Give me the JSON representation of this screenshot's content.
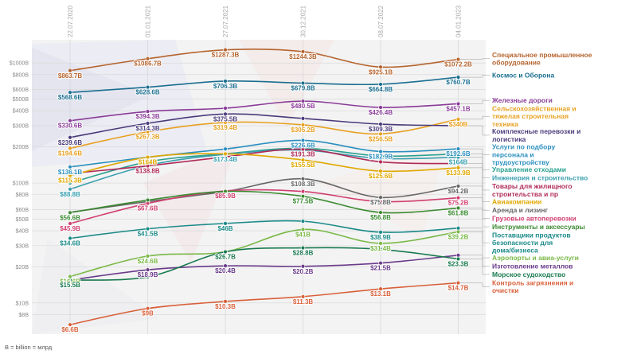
{
  "chart_data": {
    "type": "line",
    "title": "",
    "xlabel": "",
    "ylabel": "",
    "y_scale": "log",
    "ylim": [
      5.5,
      1300
    ],
    "grid": true,
    "x_dates": [
      "22.07.2020",
      "01.01.2021",
      "27.07.2021",
      "30.12.2021",
      "08.07.2022",
      "04.01.2023"
    ],
    "y_ticks": [
      {
        "v": 1000,
        "t": "$1000B"
      },
      {
        "v": 800,
        "t": "$800B"
      },
      {
        "v": 600,
        "t": "$600B"
      },
      {
        "v": 500,
        "t": "$500B"
      },
      {
        "v": 400,
        "t": "$400B"
      },
      {
        "v": 300,
        "t": "$300B"
      },
      {
        "v": 200,
        "t": "$200B"
      },
      {
        "v": 100,
        "t": "$100B"
      },
      {
        "v": 80,
        "t": "$80B"
      },
      {
        "v": 60,
        "t": "$60B"
      },
      {
        "v": 50,
        "t": "$50B"
      },
      {
        "v": 40,
        "t": "$40B"
      },
      {
        "v": 30,
        "t": "$30B"
      },
      {
        "v": 20,
        "t": "$20B"
      },
      {
        "v": 10,
        "t": "$10B"
      },
      {
        "v": 8,
        "t": "$8B"
      }
    ],
    "footnote": "B = billion = млрд",
    "series": [
      {
        "name": "Специальное промышленное оборудование",
        "color": "#b5642e",
        "values": [
          863.7,
          1086.7,
          1287.3,
          1244.3,
          925.1,
          1072.2
        ],
        "labels": [
          "$863.7B",
          "$1086.7B",
          "$1287.3B",
          "$1244.3B",
          "$925.1B",
          "$1072.2B"
        ]
      },
      {
        "name": "Космос и Оборона",
        "color": "#1a6e8f",
        "values": [
          568.6,
          628.6,
          706.3,
          679.8,
          664.8,
          760.7
        ],
        "labels": [
          "$568.6B",
          "$628.6B",
          "$706.3B",
          "$679.8B",
          "$664.8B",
          "$760.7B"
        ]
      },
      {
        "name": "Железные дороги",
        "color": "#8a3c98",
        "values": [
          330.6,
          394.3,
          420,
          480.5,
          426.4,
          457.1
        ],
        "labels": [
          "$330.6B",
          "$394.3B",
          "",
          "$480.5B",
          "$426.4B",
          "$457.1B"
        ]
      },
      {
        "name": "Сельскохозяйственная и тяжелая строительная техника",
        "color": "#e8a020",
        "values": [
          194.6,
          267.3,
          319.4,
          305.2,
          256.5,
          340
        ],
        "labels": [
          "$194.6B",
          "$267.3B",
          "$319.4B",
          "$305.2B",
          "$256.5B",
          "$340B"
        ]
      },
      {
        "name": "Комплексные перевозки и логистика",
        "color": "#4a3a7a",
        "values": [
          239.6,
          314.3,
          375.5,
          345,
          309.3,
          300
        ],
        "labels": [
          "$239.6B",
          "$314.3B",
          "$375.5B",
          "",
          "$309.3B",
          ""
        ]
      },
      {
        "name": "Услуги по подбору персонала и трудоустройству",
        "color": "#2a8fbf",
        "values": [
          136.1,
          164,
          192,
          226.6,
          182.9,
          192.6
        ],
        "labels": [
          "$136.1B",
          "",
          "",
          "$226.6B",
          "$182.9B",
          "$192.6B"
        ]
      },
      {
        "name": "Управление отходами",
        "color": "#2aa090",
        "values": [
          100,
          150,
          175,
          195,
          168,
          175
        ],
        "labels": [
          "",
          "",
          "",
          "",
          "",
          ""
        ]
      },
      {
        "name": "Инженерия и строительство",
        "color": "#3aa0b0",
        "values": [
          88.8,
          140,
          173.4,
          188,
          160,
          164
        ],
        "labels": [
          "$88.8B",
          "",
          "$173.4B",
          "",
          "",
          "$164B"
        ]
      },
      {
        "name": "Товары для жилищного строительства и пр",
        "color": "#b02a58",
        "values": [
          120,
          138.8,
          165,
          191.3,
          150,
          145
        ],
        "labels": [
          "",
          "$138.8B",
          "",
          "$191.3B",
          "",
          ""
        ]
      },
      {
        "name": "Авиакомпании",
        "color": "#e0a800",
        "values": [
          115.3,
          164,
          175,
          155.5,
          125.6,
          133.9
        ],
        "labels": [
          "$115.3B",
          "$164B",
          "",
          "$155.5B",
          "$125.6B",
          "$133.9B"
        ]
      },
      {
        "name": "Аренда и лизинг",
        "color": "#666666",
        "values": [
          57,
          70,
          85,
          108.3,
          75.8,
          94.2
        ],
        "labels": [
          "",
          "",
          "",
          "$108.3B",
          "$75.8B",
          "$94.2B"
        ]
      },
      {
        "name": "Грузовые автоперевозки",
        "color": "#d04070",
        "values": [
          45.9,
          67.6,
          85.9,
          85,
          70,
          75.2
        ],
        "labels": [
          "$45.9B",
          "$67.6B",
          "$85.9B",
          "",
          "",
          "$75.2B"
        ]
      },
      {
        "name": "Инструменты и аксессуары",
        "color": "#3a8a30",
        "values": [
          56.6,
          72,
          85,
          77.5,
          56.8,
          61.8
        ],
        "labels": [
          "$56.6B",
          "",
          "",
          "$77.5B",
          "$56.8B",
          "$61.8B"
        ]
      },
      {
        "name": "Поставщики продуктов безопасности для дома/бизнеса",
        "color": "#1a8a88",
        "values": [
          34.6,
          41.5,
          46,
          48,
          38.9,
          42
        ],
        "labels": [
          "$34.6B",
          "$41.5B",
          "$46B",
          "",
          "$38.9B",
          ""
        ]
      },
      {
        "name": "Аэропорты и авиа-услуги",
        "color": "#7ab848",
        "values": [
          16.6,
          24.6,
          26.7,
          41,
          31.4,
          39.2
        ],
        "labels": [
          "$16.6B",
          "$24.6B",
          "",
          "$41B",
          "$31.4B",
          "$39.2B"
        ]
      },
      {
        "name": "Изготовление металлов",
        "color": "#6a3a8a",
        "values": [
          15.5,
          18.9,
          20.4,
          20.2,
          21.5,
          25
        ],
        "labels": [
          "",
          "$18.9B",
          "$20.4B",
          "$20.2B",
          "$21.5B",
          ""
        ]
      },
      {
        "name": "Морское судоходство",
        "color": "#1a7a50",
        "values": [
          15.5,
          16.5,
          26.7,
          28.8,
          28,
          23.3
        ],
        "labels": [
          "$15.5B",
          "",
          "$26.7B",
          "$28.8B",
          "",
          "$23.3B"
        ]
      },
      {
        "name": "Контроль загрязнения и очистки",
        "color": "#d8603a",
        "values": [
          6.6,
          9,
          10.3,
          11.3,
          13.1,
          14.7
        ],
        "labels": [
          "$6.6B",
          "$9B",
          "$10.3B",
          "$11.3B",
          "$13.1B",
          "$14.7B"
        ]
      }
    ]
  }
}
